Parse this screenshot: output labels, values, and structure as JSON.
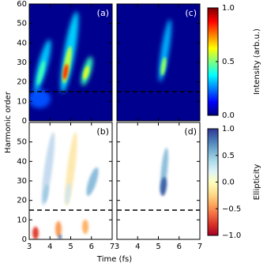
{
  "y_label": "Harmonic order",
  "x_label": "Time (fs)",
  "chart_data": [
    {
      "type": "heatmap",
      "label": "(a)",
      "background": "#00008f",
      "xlim": [
        3,
        7
      ],
      "ylim": [
        0,
        60
      ],
      "xticks": [
        3,
        4,
        5,
        6,
        7
      ],
      "yticks": [
        0,
        10,
        20,
        30,
        40,
        50,
        60
      ],
      "dashed_line": 15
    },
    {
      "type": "heatmap",
      "label": "(b)",
      "background": "#ffffff",
      "xlim": [
        3,
        7
      ],
      "ylim": [
        0,
        60
      ],
      "xticks": [
        3,
        4,
        5,
        6,
        7
      ],
      "yticks": [
        0,
        10,
        20,
        30,
        40,
        50
      ],
      "dashed_line": 15
    },
    {
      "type": "heatmap",
      "label": "(c)",
      "background": "#00008f",
      "xlim": [
        3,
        7
      ],
      "ylim": [
        0,
        60
      ],
      "xticks": [
        3,
        4,
        5,
        6,
        7
      ],
      "yticks": [
        0,
        10,
        20,
        30,
        40,
        50,
        60
      ],
      "dashed_line": 15
    },
    {
      "type": "heatmap",
      "label": "(d)",
      "background": "#ffffff",
      "xlim": [
        3,
        7
      ],
      "ylim": [
        0,
        60
      ],
      "xticks": [
        3,
        4,
        5,
        6,
        7
      ],
      "yticks": [
        0,
        10,
        20,
        30,
        40,
        50
      ],
      "dashed_line": 15
    },
    {
      "type": "colorbar",
      "label": "Intensity (arb.u.)",
      "lim": [
        0,
        1
      ],
      "ticks": [
        {
          "value": 0,
          "label": "0.0"
        },
        0.5,
        {
          "value": 1,
          "label": "1.0"
        }
      ],
      "colormap": [
        "#00007f",
        "#0000ff",
        "#007fff",
        "#00ffff",
        "#7fff7f",
        "#ffff00",
        "#ff7f00",
        "#ff0000",
        "#7f0000"
      ]
    },
    {
      "type": "colorbar",
      "label": "Ellipticity",
      "lim": [
        -1,
        1
      ],
      "ticks": [
        {
          "value": -1,
          "label": "−1.0"
        },
        {
          "value": -0.5,
          "label": "−0.5"
        },
        {
          "value": 0,
          "label": "0.0"
        },
        0.5,
        {
          "value": 1,
          "label": "1.0"
        }
      ],
      "colormap": [
        "#a50026",
        "#d73027",
        "#f46d43",
        "#fdae61",
        "#fee090",
        "#ffffbf",
        "#e0f3f8",
        "#abd9e9",
        "#74add1",
        "#4575b4",
        "#313695"
      ]
    }
  ]
}
